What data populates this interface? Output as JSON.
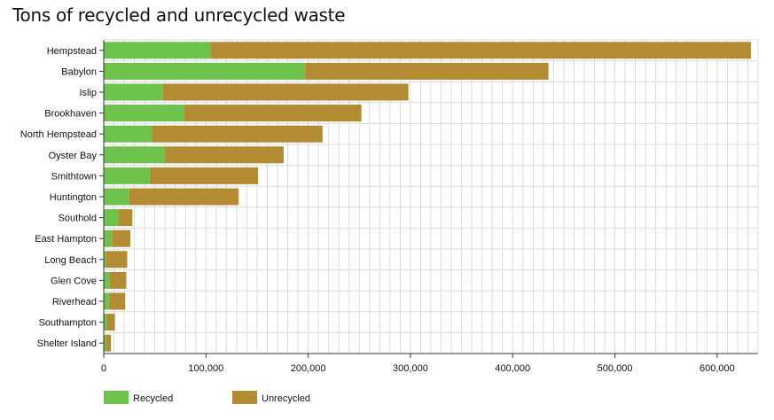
{
  "chart_data": {
    "type": "bar",
    "orientation": "horizontal",
    "stacked": true,
    "title": "Tons of recycled and unrecycled waste",
    "categories": [
      "Hempstead",
      "Babylon",
      "Islip",
      "Brookhaven",
      "North Hempstead",
      "Oyster Bay",
      "Smithtown",
      "Huntington",
      "Southold",
      "East Hampton",
      "Long Beach",
      "Glen Cove",
      "Riverhead",
      "Southampton",
      "Shelter Island"
    ],
    "series": [
      {
        "name": "Recycled",
        "color": "#6cc24a",
        "values": [
          105000,
          197000,
          58000,
          79000,
          47000,
          60000,
          45000,
          25000,
          14000,
          8000,
          2000,
          6000,
          5000,
          3000,
          2000
        ]
      },
      {
        "name": "Unrecycled",
        "color": "#b38b33",
        "values": [
          528000,
          238000,
          240000,
          173000,
          167000,
          116000,
          106000,
          107000,
          14000,
          18000,
          21000,
          16000,
          16000,
          8000,
          5000
        ]
      }
    ],
    "xlim": [
      0,
      640000
    ],
    "xticks": [
      0,
      100000,
      200000,
      300000,
      400000,
      500000,
      600000
    ],
    "xtick_labels": [
      "0",
      "100,000",
      "200,000",
      "300,000",
      "400,000",
      "500,000",
      "600,000"
    ],
    "grid": true,
    "legend_position": "bottom-left"
  }
}
